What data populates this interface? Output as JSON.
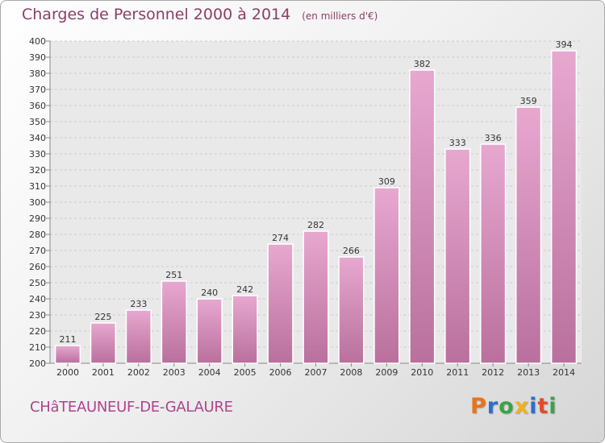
{
  "header": {
    "title": "Charges de Personnel 2000 à 2014",
    "subtitle": "(en milliers d'€)"
  },
  "footer": {
    "commune": "CHâTEAUNEUF-DE-GALAURE",
    "logo_text": "Proxiti"
  },
  "colors": {
    "bar_top": "#e7a8d0",
    "bar_bottom": "#b9709c",
    "title": "#8a3f68",
    "commune": "#b0438f",
    "grid": "#cccccc",
    "logo_letters": [
      "#e8731a",
      "#2b6fcb",
      "#3aa346",
      "#f0b21d",
      "#2b6fcb",
      "#e34a2a",
      "#3aa346"
    ]
  },
  "chart_data": {
    "type": "bar",
    "title": "Charges de Personnel 2000 à 2014",
    "subtitle": "(en milliers d'€)",
    "categories": [
      "2000",
      "2001",
      "2002",
      "2003",
      "2004",
      "2005",
      "2006",
      "2007",
      "2008",
      "2009",
      "2010",
      "2011",
      "2012",
      "2013",
      "2014"
    ],
    "values": [
      211,
      225,
      233,
      251,
      240,
      242,
      274,
      282,
      266,
      309,
      382,
      333,
      336,
      359,
      394
    ],
    "ylim": [
      200,
      400
    ],
    "ytick_step": 10,
    "grid": true,
    "legend": "none"
  }
}
